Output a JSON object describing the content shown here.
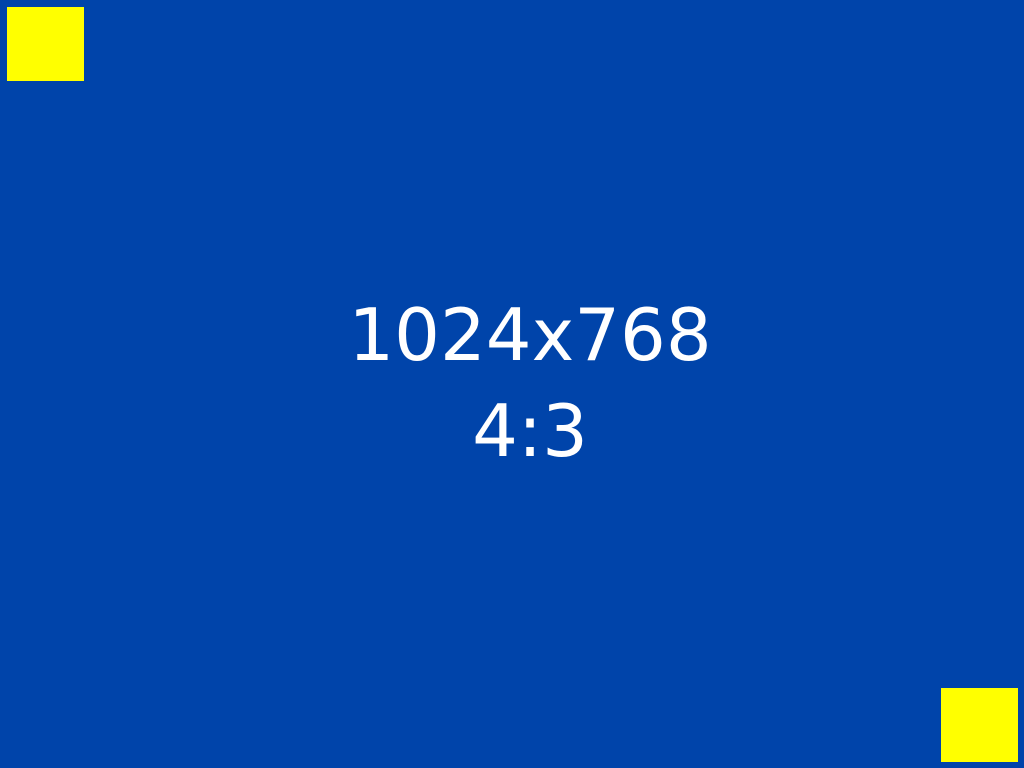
{
  "resolution_label": "1024x768",
  "aspect_ratio_label": "4:3",
  "colors": {
    "background": "#0044AA",
    "marker": "#FFFF00",
    "text": "#FFFFFF"
  }
}
